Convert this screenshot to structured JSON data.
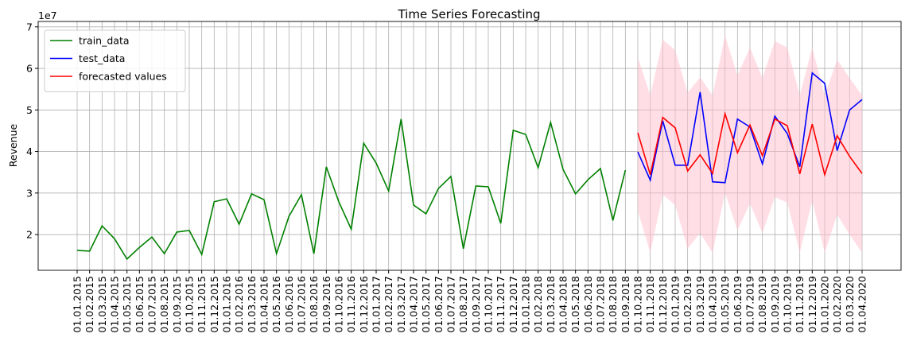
{
  "chart_data": {
    "type": "line",
    "title": "Time Series Forecasting",
    "y_label": "Revenue",
    "offset_label": "1e7",
    "categories": [
      "01.01.2015",
      "01.02.2015",
      "01.03.2015",
      "01.04.2015",
      "01.05.2015",
      "01.06.2015",
      "01.07.2015",
      "01.08.2015",
      "01.09.2015",
      "01.10.2015",
      "01.11.2015",
      "01.12.2015",
      "01.01.2016",
      "01.02.2016",
      "01.03.2016",
      "01.04.2016",
      "01.05.2016",
      "01.06.2016",
      "01.07.2016",
      "01.08.2016",
      "01.09.2016",
      "01.10.2016",
      "01.11.2016",
      "01.12.2016",
      "01.01.2017",
      "01.02.2017",
      "01.03.2017",
      "01.04.2017",
      "01.05.2017",
      "01.06.2017",
      "01.07.2017",
      "01.08.2017",
      "01.09.2017",
      "01.10.2017",
      "01.11.2017",
      "01.12.2017",
      "01.01.2018",
      "01.02.2018",
      "01.03.2018",
      "01.04.2018",
      "01.05.2018",
      "01.06.2018",
      "01.07.2018",
      "01.08.2018",
      "01.09.2018",
      "01.10.2018",
      "01.11.2018",
      "01.12.2018",
      "01.01.2019",
      "01.02.2019",
      "01.03.2019",
      "01.04.2019",
      "01.05.2019",
      "01.06.2019",
      "01.07.2019",
      "01.08.2019",
      "01.09.2019",
      "01.10.2019",
      "01.11.2019",
      "01.12.2019",
      "01.01.2020",
      "01.02.2020",
      "01.03.2020",
      "01.04.2020"
    ],
    "series": [
      {
        "name": "train_data",
        "color": "#008000",
        "values": [
          1.62,
          1.6,
          2.21,
          1.9,
          1.41,
          1.69,
          1.94,
          1.54,
          2.06,
          2.1,
          1.52,
          2.79,
          2.86,
          2.25,
          2.98,
          2.84,
          1.54,
          2.44,
          2.96,
          1.54,
          3.63,
          2.79,
          2.13,
          4.2,
          3.72,
          3.05,
          4.78,
          2.71,
          2.5,
          3.11,
          3.4,
          1.66,
          3.17,
          3.15,
          2.27,
          4.51,
          4.41,
          3.61,
          4.7,
          3.57,
          2.98,
          3.32,
          3.59,
          2.34,
          3.55,
          null,
          null,
          null,
          null,
          null,
          null,
          null,
          null,
          null,
          null,
          null,
          null,
          null,
          null,
          null,
          null,
          null,
          null,
          null
        ]
      },
      {
        "name": "test_data",
        "color": "#0000ff",
        "values": [
          null,
          null,
          null,
          null,
          null,
          null,
          null,
          null,
          null,
          null,
          null,
          null,
          null,
          null,
          null,
          null,
          null,
          null,
          null,
          null,
          null,
          null,
          null,
          null,
          null,
          null,
          null,
          null,
          null,
          null,
          null,
          null,
          null,
          null,
          null,
          null,
          null,
          null,
          null,
          null,
          null,
          null,
          null,
          null,
          null,
          3.99,
          3.31,
          4.74,
          3.67,
          3.67,
          5.43,
          3.27,
          3.25,
          4.78,
          4.59,
          3.7,
          4.85,
          4.43,
          3.63,
          5.89,
          5.64,
          4.02,
          5.0,
          5.25
        ]
      },
      {
        "name": "forecasted values",
        "color": "#ff0000",
        "values": [
          null,
          null,
          null,
          null,
          null,
          null,
          null,
          null,
          null,
          null,
          null,
          null,
          null,
          null,
          null,
          null,
          null,
          null,
          null,
          null,
          null,
          null,
          null,
          null,
          null,
          null,
          null,
          null,
          null,
          null,
          null,
          null,
          null,
          null,
          null,
          null,
          null,
          null,
          null,
          null,
          null,
          null,
          null,
          null,
          null,
          4.45,
          3.44,
          4.82,
          4.57,
          3.53,
          3.92,
          3.47,
          4.91,
          3.97,
          4.64,
          3.9,
          4.78,
          4.62,
          3.46,
          4.66,
          3.44,
          4.38,
          3.88,
          3.47
        ]
      }
    ],
    "interval": {
      "color": "#ffc0cb",
      "upper": [
        null,
        null,
        null,
        null,
        null,
        null,
        null,
        null,
        null,
        null,
        null,
        null,
        null,
        null,
        null,
        null,
        null,
        null,
        null,
        null,
        null,
        null,
        null,
        null,
        null,
        null,
        null,
        null,
        null,
        null,
        null,
        null,
        null,
        null,
        null,
        null,
        null,
        null,
        null,
        null,
        null,
        null,
        null,
        null,
        null,
        6.27,
        5.35,
        6.69,
        6.44,
        5.41,
        5.79,
        5.35,
        6.79,
        5.83,
        6.5,
        5.77,
        6.66,
        6.5,
        5.35,
        6.5,
        5.35,
        6.21,
        5.77,
        5.35
      ],
      "lower": [
        null,
        null,
        null,
        null,
        null,
        null,
        null,
        null,
        null,
        null,
        null,
        null,
        null,
        null,
        null,
        null,
        null,
        null,
        null,
        null,
        null,
        null,
        null,
        null,
        null,
        null,
        null,
        null,
        null,
        null,
        null,
        null,
        null,
        null,
        null,
        null,
        null,
        null,
        null,
        null,
        null,
        null,
        null,
        null,
        null,
        2.57,
        1.56,
        2.96,
        2.71,
        1.66,
        2.04,
        1.56,
        3.0,
        2.1,
        2.75,
        2.04,
        2.9,
        2.77,
        1.56,
        2.82,
        1.56,
        2.48,
        2.0,
        1.56
      ]
    },
    "ylim": [
      1.14,
      7.13
    ],
    "yticks": [
      2,
      3,
      4,
      5,
      6,
      7
    ],
    "grid": true,
    "legend": "upper left"
  }
}
